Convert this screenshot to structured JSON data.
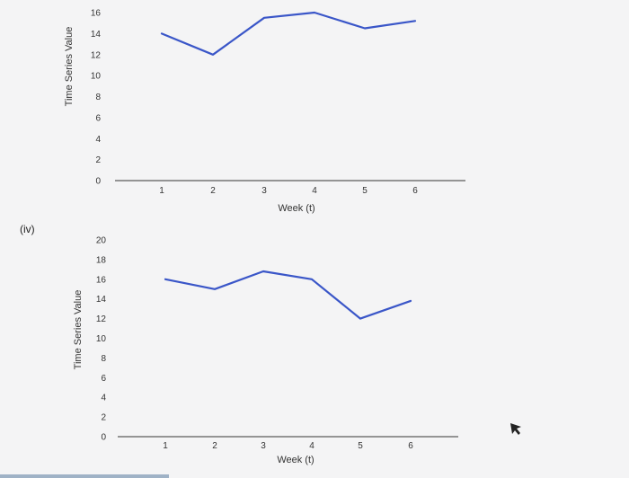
{
  "part_label": "(iv)",
  "icons": {
    "cursor": "mouse-pointer-icon"
  },
  "colors": {
    "line": "#3a56c8",
    "axis": "#333333",
    "background": "#f4f4f5"
  },
  "chart_data": [
    {
      "type": "line",
      "xlabel": "Week (t)",
      "ylabel": "Time Series Value",
      "ylim": [
        0,
        16
      ],
      "yticks": [
        0,
        2,
        4,
        6,
        8,
        10,
        12,
        14,
        16
      ],
      "xticks": [
        1,
        2,
        3,
        4,
        5,
        6
      ],
      "x": [
        1,
        2,
        3,
        4,
        5,
        6
      ],
      "series": [
        {
          "values": [
            14,
            12,
            15.5,
            16,
            14.5,
            15.2
          ]
        }
      ],
      "grid": false
    },
    {
      "type": "line",
      "xlabel": "Week (t)",
      "ylabel": "Time Series Value",
      "ylim": [
        0,
        20
      ],
      "yticks": [
        0,
        2,
        4,
        6,
        8,
        10,
        12,
        14,
        16,
        18,
        20
      ],
      "xticks": [
        1,
        2,
        3,
        4,
        5,
        6
      ],
      "x": [
        1,
        2,
        3,
        4,
        5,
        6
      ],
      "series": [
        {
          "values": [
            16,
            15,
            16.8,
            16,
            12,
            13.8
          ]
        }
      ],
      "grid": false
    }
  ]
}
